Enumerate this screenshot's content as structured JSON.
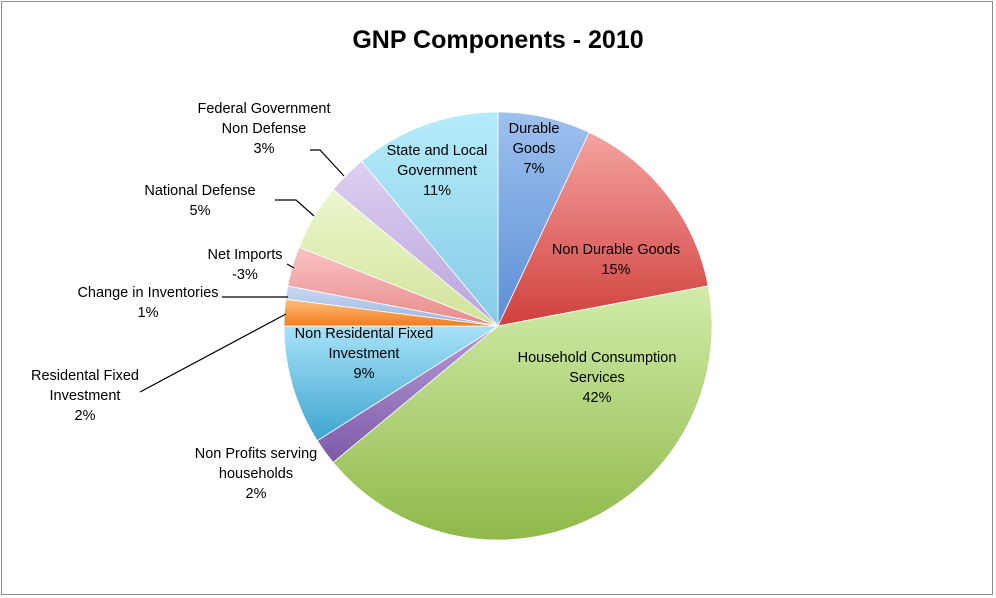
{
  "chart_data": {
    "type": "pie",
    "title": "GNP Components - 2010",
    "slices": [
      {
        "name": "Durable Goods",
        "value": 7,
        "label_lines": [
          "Durable",
          "Goods",
          "7%"
        ],
        "color": "#5b8fd6",
        "color_light": "#9ec0ee"
      },
      {
        "name": "Non Durable Goods",
        "value": 15,
        "label_lines": [
          "Non Durable Goods",
          "15%"
        ],
        "color": "#d0403c",
        "color_light": "#f4a3a1"
      },
      {
        "name": "Household Consumption Services",
        "value": 42,
        "label_lines": [
          "Household Consumption",
          "Services",
          "42%"
        ],
        "color": "#8fb949",
        "color_light": "#d2ecaa"
      },
      {
        "name": "Non Profits serving households",
        "value": 2,
        "label_lines": [
          "Non Profits serving",
          "households",
          "2%"
        ],
        "color": "#7d5aa8",
        "color_light": "#b79ad6"
      },
      {
        "name": "Non Residental Fixed Investment",
        "value": 9,
        "label_lines": [
          "Non Residental Fixed",
          "Investment",
          "9%"
        ],
        "color": "#3ea5cf",
        "color_light": "#a8e2f8"
      },
      {
        "name": "Residental Fixed Investment",
        "value": 2,
        "label_lines": [
          "Residental Fixed",
          "Investment",
          "2%"
        ],
        "color": "#f07d1f",
        "color_light": "#ffbf7a"
      },
      {
        "name": "Change in Inventories",
        "value": 1,
        "label_lines": [
          "Change in Inventories",
          "1%"
        ],
        "color": "#9ab3de",
        "color_light": "#c9d9f2"
      },
      {
        "name": "Net Imports",
        "value": 3,
        "label_lines": [
          "Net Imports",
          "-3%"
        ],
        "color": "#e98a8a",
        "color_light": "#fac3c3"
      },
      {
        "name": "National Defense",
        "value": 5,
        "label_lines": [
          "National Defense",
          "5%"
        ],
        "color": "#cfe39a",
        "color_light": "#eef7cf"
      },
      {
        "name": "Federal Government Non Defense",
        "value": 3,
        "label_lines": [
          "Federal Government",
          "Non Defense",
          "3%"
        ],
        "color": "#b9a3dc",
        "color_light": "#ddd0f1"
      },
      {
        "name": "State and Local Government",
        "value": 11,
        "label_lines": [
          "State and Local",
          "Government",
          "11%"
        ],
        "color": "#86cbe6",
        "color_light": "#b5ecfb"
      }
    ],
    "start_angle_deg": 0,
    "direction": "clockwise",
    "legend": "none"
  }
}
